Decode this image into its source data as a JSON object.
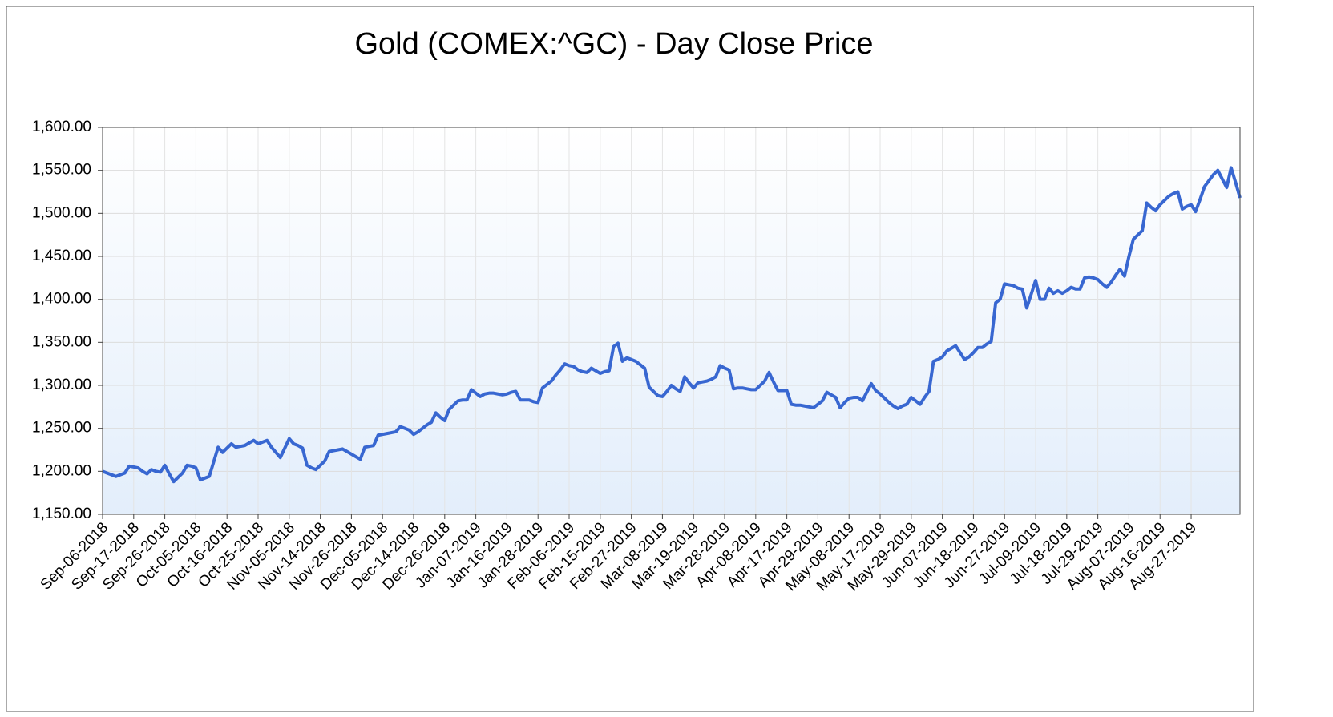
{
  "chart_data": {
    "type": "line",
    "title": "Gold (COMEX:^GC) - Day Close Price",
    "categories": [
      "Sep-06-2018",
      null,
      null,
      null,
      null,
      null,
      null,
      "Sep-17-2018",
      null,
      null,
      null,
      null,
      null,
      null,
      "Sep-26-2018",
      null,
      null,
      null,
      null,
      null,
      null,
      "Oct-05-2018",
      null,
      null,
      null,
      null,
      null,
      null,
      "Oct-16-2018",
      null,
      null,
      null,
      null,
      null,
      null,
      "Oct-25-2018",
      null,
      null,
      null,
      null,
      null,
      null,
      "Nov-05-2018",
      null,
      null,
      null,
      null,
      null,
      null,
      "Nov-14-2018",
      null,
      null,
      null,
      null,
      null,
      null,
      "Nov-26-2018",
      null,
      null,
      null,
      null,
      null,
      null,
      "Dec-05-2018",
      null,
      null,
      null,
      null,
      null,
      null,
      "Dec-14-2018",
      null,
      null,
      null,
      null,
      null,
      null,
      "Dec-26-2018",
      null,
      null,
      null,
      null,
      null,
      null,
      "Jan-07-2019",
      null,
      null,
      null,
      null,
      null,
      null,
      "Jan-16-2019",
      null,
      null,
      null,
      null,
      null,
      null,
      "Jan-28-2019",
      null,
      null,
      null,
      null,
      null,
      null,
      "Feb-06-2019",
      null,
      null,
      null,
      null,
      null,
      null,
      "Feb-15-2019",
      null,
      null,
      null,
      null,
      null,
      null,
      "Feb-27-2019",
      null,
      null,
      null,
      null,
      null,
      null,
      "Mar-08-2019",
      null,
      null,
      null,
      null,
      null,
      null,
      "Mar-19-2019",
      null,
      null,
      null,
      null,
      null,
      null,
      "Mar-28-2019",
      null,
      null,
      null,
      null,
      null,
      null,
      "Apr-08-2019",
      null,
      null,
      null,
      null,
      null,
      null,
      "Apr-17-2019",
      null,
      null,
      null,
      null,
      null,
      null,
      "Apr-29-2019",
      null,
      null,
      null,
      null,
      null,
      null,
      "May-08-2019",
      null,
      null,
      null,
      null,
      null,
      null,
      "May-17-2019",
      null,
      null,
      null,
      null,
      null,
      null,
      "May-29-2019",
      null,
      null,
      null,
      null,
      null,
      null,
      "Jun-07-2019",
      null,
      null,
      null,
      null,
      null,
      null,
      "Jun-18-2019",
      null,
      null,
      null,
      null,
      null,
      null,
      "Jun-27-2019",
      null,
      null,
      null,
      null,
      null,
      null,
      "Jul-09-2019",
      null,
      null,
      null,
      null,
      null,
      null,
      "Jul-18-2019",
      null,
      null,
      null,
      null,
      null,
      null,
      "Jul-29-2019",
      null,
      null,
      null,
      null,
      null,
      null,
      "Aug-07-2019",
      null,
      null,
      null,
      null,
      null,
      null,
      "Aug-16-2019",
      null,
      null,
      null,
      null,
      null,
      null,
      "Aug-27-2019",
      null,
      null,
      null,
      null,
      null,
      null,
      null,
      null,
      null,
      null,
      null
    ],
    "series": [
      {
        "name": "Day Close Price",
        "color": "#3867d1",
        "values": [
          1200,
          1198,
          1196,
          1194,
          1196,
          1198,
          1206,
          1205,
          1204,
          1200,
          1197,
          1202,
          1200,
          1199,
          1207,
          1197,
          1188,
          1193,
          1198,
          1207,
          1206,
          1204,
          1190,
          1192,
          1194,
          1211,
          1228,
          1222,
          1227,
          1232,
          1228,
          1229,
          1230,
          1233,
          1236,
          1232,
          1234,
          1236,
          1228,
          1222,
          1216,
          1227,
          1238,
          1232,
          1230,
          1227,
          1207,
          1204,
          1202,
          1207,
          1212,
          1223,
          1224,
          1225,
          1226,
          1223,
          1220,
          1217,
          1214,
          1228,
          1229,
          1230,
          1242,
          1243,
          1244,
          1245,
          1246,
          1252,
          1250,
          1248,
          1243,
          1246,
          1250,
          1254,
          1257,
          1268,
          1263,
          1259,
          1272,
          1277,
          1282,
          1283,
          1283,
          1295,
          1291,
          1287,
          1290,
          1291,
          1291,
          1290,
          1289,
          1290,
          1292,
          1293,
          1283,
          1283,
          1283,
          1281,
          1280,
          1297,
          1301,
          1305,
          1312,
          1318,
          1325,
          1323,
          1322,
          1318,
          1316,
          1315,
          1320,
          1317,
          1314,
          1316,
          1317,
          1345,
          1349,
          1328,
          1332,
          1330,
          1328,
          1324,
          1320,
          1298,
          1293,
          1288,
          1287,
          1293,
          1300,
          1296,
          1293,
          1310,
          1303,
          1297,
          1303,
          1304,
          1305,
          1307,
          1310,
          1323,
          1320,
          1318,
          1296,
          1297,
          1297,
          1296,
          1295,
          1295,
          1300,
          1305,
          1315,
          1304,
          1294,
          1294,
          1294,
          1278,
          1277,
          1277,
          1276,
          1275,
          1274,
          1278,
          1282,
          1292,
          1289,
          1286,
          1274,
          1280,
          1285,
          1286,
          1286,
          1282,
          1292,
          1302,
          1294,
          1290,
          1285,
          1280,
          1276,
          1273,
          1276,
          1278,
          1286,
          1282,
          1278,
          1286,
          1293,
          1328,
          1330,
          1333,
          1340,
          1343,
          1346,
          1338,
          1330,
          1333,
          1338,
          1344,
          1344,
          1348,
          1351,
          1396,
          1400,
          1418,
          1417,
          1416,
          1413,
          1412,
          1390,
          1406,
          1422,
          1400,
          1400,
          1413,
          1407,
          1410,
          1407,
          1410,
          1414,
          1412,
          1412,
          1425,
          1426,
          1425,
          1423,
          1418,
          1414,
          1420,
          1428,
          1435,
          1427,
          1450,
          1470,
          1475,
          1480,
          1512,
          1507,
          1503,
          1510,
          1515,
          1520,
          1523,
          1525,
          1505,
          1508,
          1510,
          1502,
          1516,
          1531,
          1538,
          1545,
          1550,
          1540,
          1530,
          1553,
          1536,
          1518
        ]
      }
    ],
    "ylim": [
      1150,
      1600
    ],
    "yticks": [
      {
        "value": 1150,
        "label": "1,150.00"
      },
      {
        "value": 1200,
        "label": "1,200.00"
      },
      {
        "value": 1250,
        "label": "1,250.00"
      },
      {
        "value": 1300,
        "label": "1,300.00"
      },
      {
        "value": 1350,
        "label": "1,350.00"
      },
      {
        "value": 1400,
        "label": "1,400.00"
      },
      {
        "value": 1450,
        "label": "1,450.00"
      },
      {
        "value": 1500,
        "label": "1,500.00"
      },
      {
        "value": 1550,
        "label": "1,550.00"
      },
      {
        "value": 1600,
        "label": "1,600.00"
      }
    ],
    "grid": true
  }
}
